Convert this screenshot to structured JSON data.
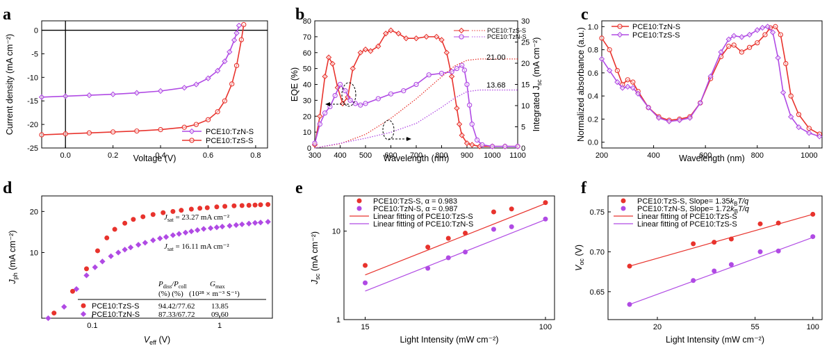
{
  "colors": {
    "red": "#e8332d",
    "purple": "#b04ae4"
  },
  "chart_data": [
    {
      "id": "a",
      "type": "line",
      "panel_label": "a",
      "xlabel": "Voltage (V)",
      "ylabel": "Current density (mA cm⁻²)",
      "xlim": [
        -0.1,
        0.85
      ],
      "ylim": [
        -25,
        2
      ],
      "xticks": [
        "0.0",
        "0.2",
        "0.4",
        "0.6",
        "0.8"
      ],
      "xtick_values": [
        0,
        0.2,
        0.4,
        0.6,
        0.8
      ],
      "yticks": [
        "0",
        "-5",
        "-10",
        "-15",
        "-20",
        "-25"
      ],
      "ytick_values": [
        0,
        -5,
        -10,
        -15,
        -20,
        -25
      ],
      "legend_position": "bottom-right",
      "series": [
        {
          "name": "PCE10:TzN-S",
          "color": "#b04ae4",
          "x": [
            -0.1,
            0.0,
            0.1,
            0.2,
            0.3,
            0.4,
            0.5,
            0.55,
            0.6,
            0.64,
            0.67,
            0.69,
            0.71,
            0.72,
            0.73
          ],
          "y": [
            -14.2,
            -14.0,
            -13.8,
            -13.6,
            -13.3,
            -12.9,
            -12.2,
            -11.5,
            -10.2,
            -8.6,
            -6.6,
            -4.6,
            -2.1,
            -0.6,
            1.0
          ]
        },
        {
          "name": "PCE10:TzS-S",
          "color": "#e8332d",
          "x": [
            -0.1,
            0.0,
            0.1,
            0.2,
            0.3,
            0.4,
            0.5,
            0.55,
            0.6,
            0.64,
            0.67,
            0.7,
            0.72,
            0.74,
            0.75
          ],
          "y": [
            -22.2,
            -22.0,
            -21.8,
            -21.6,
            -21.4,
            -21.1,
            -20.6,
            -20.0,
            -19.0,
            -17.3,
            -15.0,
            -11.4,
            -7.5,
            -2.0,
            1.2
          ]
        }
      ]
    },
    {
      "id": "b",
      "type": "line",
      "panel_label": "b",
      "xlabel": "Wavelength (nm)",
      "ylabel": "EQE (%)",
      "ylabel_right": "Integrated J",
      "ylabel_right_sub": "sc",
      "ylabel_right_unit": " (mA cm⁻²)",
      "xlim": [
        300,
        1100
      ],
      "ylim": [
        0,
        80
      ],
      "ylim_right": [
        0,
        30
      ],
      "xticks": [
        "300",
        "400",
        "500",
        "600",
        "700",
        "800",
        "900",
        "1000",
        "1100"
      ],
      "yticks": [
        "0",
        "10",
        "20",
        "30",
        "40",
        "50",
        "60",
        "70",
        "80"
      ],
      "yticks_right": [
        "0",
        "5",
        "10",
        "15",
        "20",
        "25",
        "30"
      ],
      "annotations": [
        "21.00",
        "13.68"
      ],
      "legend_position": "top-right",
      "series": [
        {
          "name": "PCE10:TzS-S",
          "color": "#e8332d",
          "x": [
            300,
            320,
            340,
            355,
            370,
            390,
            410,
            430,
            450,
            480,
            500,
            520,
            550,
            580,
            600,
            630,
            660,
            700,
            740,
            780,
            800,
            820,
            840,
            860,
            870,
            880,
            900,
            920,
            950,
            1000,
            1050,
            1100
          ],
          "y": [
            2,
            20,
            45,
            57,
            53,
            38,
            28,
            32,
            50,
            60,
            62,
            61,
            64,
            72,
            74,
            72,
            69,
            69,
            70,
            70,
            68,
            60,
            45,
            25,
            15,
            8,
            3,
            2,
            1,
            1,
            1,
            1
          ]
        },
        {
          "name": "PCE10:TzN-S",
          "color": "#b04ae4",
          "x": [
            300,
            320,
            340,
            360,
            380,
            400,
            420,
            440,
            460,
            480,
            500,
            550,
            600,
            650,
            700,
            750,
            800,
            840,
            860,
            880,
            890,
            900,
            910,
            920,
            940,
            960,
            1000,
            1050,
            1100
          ],
          "y": [
            3,
            15,
            22,
            26,
            33,
            40,
            36,
            30,
            28,
            27,
            28,
            31,
            34,
            36,
            40,
            46,
            47,
            48,
            50,
            52,
            49,
            40,
            27,
            15,
            5,
            2,
            1,
            1,
            1
          ]
        },
        {
          "name": "PCE10:TzS-S",
          "color": "#e8332d",
          "axis": "right",
          "style": "dotted",
          "x": [
            300,
            400,
            500,
            600,
            700,
            800,
            850,
            900,
            950,
            1000,
            1100
          ],
          "y": [
            0,
            1,
            3.2,
            7,
            11.6,
            16.8,
            19.3,
            20.7,
            21.0,
            21.0,
            21.0
          ]
        },
        {
          "name": "PCE10:TzN-S",
          "color": "#b04ae4",
          "axis": "right",
          "style": "dotted",
          "x": [
            300,
            400,
            500,
            600,
            700,
            800,
            850,
            900,
            950,
            1000,
            1100
          ],
          "y": [
            0,
            1.1,
            2.3,
            3.7,
            5.8,
            9.6,
            11.7,
            13.3,
            13.68,
            13.68,
            13.68
          ]
        }
      ]
    },
    {
      "id": "c",
      "type": "line",
      "panel_label": "c",
      "xlabel": "Wavelength (nm)",
      "ylabel": "Normalized absorbance (a.u.)",
      "xlim": [
        200,
        1050
      ],
      "ylim": [
        -0.05,
        1.05
      ],
      "xticks": [
        "200",
        "400",
        "600",
        "800",
        "1000"
      ],
      "yticks": [
        "0.0",
        "0.2",
        "0.4",
        "0.6",
        "0.8",
        "1.0"
      ],
      "legend_position": "top-left",
      "series": [
        {
          "name": "PCE10:TzN-S",
          "color": "#e8332d",
          "x": [
            200,
            230,
            260,
            280,
            300,
            320,
            340,
            380,
            420,
            460,
            500,
            540,
            580,
            620,
            660,
            690,
            710,
            740,
            770,
            800,
            830,
            850,
            870,
            890,
            910,
            930,
            960,
            1000,
            1040
          ],
          "y": [
            0.9,
            0.8,
            0.62,
            0.5,
            0.54,
            0.52,
            0.44,
            0.3,
            0.22,
            0.19,
            0.2,
            0.22,
            0.34,
            0.55,
            0.74,
            0.83,
            0.84,
            0.78,
            0.82,
            0.86,
            0.93,
            0.99,
            1.0,
            0.93,
            0.68,
            0.4,
            0.24,
            0.12,
            0.07
          ]
        },
        {
          "name": "PCE10:TzS-S",
          "color": "#b04ae4",
          "x": [
            200,
            230,
            260,
            280,
            300,
            320,
            340,
            380,
            420,
            460,
            500,
            540,
            580,
            620,
            660,
            690,
            710,
            740,
            770,
            800,
            820,
            840,
            860,
            880,
            900,
            930,
            960,
            1000,
            1040
          ],
          "y": [
            0.72,
            0.62,
            0.52,
            0.47,
            0.48,
            0.47,
            0.42,
            0.3,
            0.21,
            0.18,
            0.19,
            0.21,
            0.34,
            0.57,
            0.78,
            0.89,
            0.92,
            0.91,
            0.93,
            0.97,
            0.99,
            1.0,
            0.95,
            0.73,
            0.43,
            0.22,
            0.13,
            0.08,
            0.05
          ]
        }
      ]
    },
    {
      "id": "d",
      "type": "scatter",
      "panel_label": "d",
      "xscale": "log",
      "yscale": "log",
      "xlabel": "V",
      "xlabel_sub": "eff",
      "xlabel_unit": " (V)",
      "ylabel": "J",
      "ylabel_sub": "ph",
      "ylabel_unit": " (mA cm⁻²)",
      "xlim": [
        0.04,
        2.6
      ],
      "ylim": [
        3.3,
        26
      ],
      "xticks": [
        "0.1",
        "1"
      ],
      "yticks": [
        "10",
        "20"
      ],
      "annotations": [
        "J",
        "sat",
        " = 23.27 mA cm⁻²",
        "J",
        "sat",
        " = 16.11 mA cm⁻²"
      ],
      "table": {
        "header": [
          "P",
          "diss",
          "/P",
          "coll",
          "G",
          "max",
          "(%)   (%)",
          "(10²⁸ × m⁻³ S⁻¹)"
        ],
        "rows": [
          {
            "name": "PCE10:TzS-S",
            "value": "94.42/77.62",
            "g": "13.85"
          },
          {
            "name": "PCE10:TzN-S",
            "value": "87.33/67.72",
            "g": "09.60"
          }
        ]
      },
      "series": [
        {
          "name": "PCE10:TzS-S",
          "color": "#e8332d",
          "x": [
            0.05,
            0.07,
            0.09,
            0.11,
            0.13,
            0.15,
            0.18,
            0.21,
            0.25,
            0.3,
            0.36,
            0.43,
            0.5,
            0.6,
            0.7,
            0.8,
            0.95,
            1.1,
            1.3,
            1.5,
            1.7,
            1.9,
            2.1,
            2.4
          ],
          "y": [
            3.6,
            5.2,
            7.6,
            10.3,
            12.8,
            14.8,
            16.4,
            17.5,
            18.3,
            19.0,
            19.6,
            20.0,
            20.4,
            20.8,
            21.1,
            21.3,
            21.6,
            21.8,
            22.0,
            22.1,
            22.2,
            22.3,
            22.4,
            22.5
          ]
        },
        {
          "name": "PCE10:TzN-S",
          "color": "#b04ae4",
          "x": [
            0.045,
            0.06,
            0.075,
            0.09,
            0.105,
            0.12,
            0.14,
            0.16,
            0.18,
            0.2,
            0.23,
            0.26,
            0.3,
            0.34,
            0.38,
            0.43,
            0.48,
            0.54,
            0.6,
            0.67,
            0.75,
            0.85,
            0.95,
            1.05,
            1.2,
            1.35,
            1.5,
            1.7,
            1.9,
            2.1,
            2.4
          ],
          "y": [
            3.3,
            4.0,
            5.4,
            6.8,
            7.8,
            8.6,
            9.4,
            10.0,
            10.5,
            10.9,
            11.4,
            11.8,
            12.3,
            12.7,
            13.0,
            13.4,
            13.7,
            14.0,
            14.3,
            14.6,
            14.9,
            15.1,
            15.3,
            15.5,
            15.7,
            15.9,
            16.1,
            16.3,
            16.5,
            16.6,
            16.8
          ]
        }
      ]
    },
    {
      "id": "e",
      "type": "scatter",
      "panel_label": "e",
      "xscale": "log",
      "yscale": "log",
      "xlabel": "Light Intensity (mW cm⁻²)",
      "ylabel": "J",
      "ylabel_sub": "sc",
      "ylabel_unit": " (mA cm⁻²)",
      "xlim": [
        12,
        110
      ],
      "ylim": [
        1,
        25
      ],
      "xticks": [
        "15",
        "100"
      ],
      "yticks": [
        "1",
        "10"
      ],
      "legend_position": "top-left",
      "legend": [
        {
          "text": "PCE10:TzS-S, α = 0.983",
          "color": "#e8332d",
          "kind": "marker"
        },
        {
          "text": "PCE10:TzN-S, α = 0.987",
          "color": "#b04ae4",
          "kind": "marker"
        },
        {
          "text": "Linear fitting of PCE10:TzS-S",
          "color": "#e8332d",
          "kind": "line"
        },
        {
          "text": "Linear fitting of PCE10:TzN-S",
          "color": "#b04ae4",
          "kind": "line"
        }
      ],
      "series": [
        {
          "name": "PCE10:TzS-S",
          "color": "#e8332d",
          "x": [
            15,
            29,
            36,
            43,
            58,
            70,
            100
          ],
          "y": [
            4.1,
            6.6,
            8.3,
            9.5,
            16.5,
            17.8,
            21.0
          ]
        },
        {
          "name": "PCE10:TzN-S",
          "color": "#b04ae4",
          "x": [
            15,
            29,
            36,
            43,
            58,
            70,
            100
          ],
          "y": [
            2.6,
            3.8,
            5.0,
            5.8,
            10.5,
            11.2,
            13.7
          ]
        }
      ],
      "fits": [
        {
          "color": "#e8332d",
          "x": [
            15,
            100
          ],
          "y": [
            3.2,
            20.5
          ]
        },
        {
          "color": "#b04ae4",
          "x": [
            15,
            100
          ],
          "y": [
            2.1,
            13.5
          ]
        }
      ]
    },
    {
      "id": "f",
      "type": "scatter",
      "panel_label": "f",
      "xscale": "log",
      "xlabel": "Light Intensity (mW cm⁻²)",
      "ylabel": "V",
      "ylabel_sub": "oc",
      "ylabel_unit": " (V)",
      "xlim": [
        12,
        110
      ],
      "ylim": [
        0.615,
        0.77
      ],
      "xticks": [
        "20",
        "55",
        "100"
      ],
      "yticks": [
        "0.65",
        "0.70",
        "0.75"
      ],
      "legend_position": "top-left",
      "legend": [
        {
          "text": "PCE10:TzS-S, Slope= 1.35k",
          "tail": "T/q",
          "color": "#e8332d",
          "kind": "marker"
        },
        {
          "text": "PCE10:TzN-S, Slope= 1.72k",
          "tail": "T/q",
          "color": "#b04ae4",
          "kind": "marker"
        },
        {
          "text": "Linear fitting of PCE10:TzS-S",
          "color": "#e8332d",
          "kind": "line"
        },
        {
          "text": "Linear fitting of PCE10:TzS-S",
          "color": "#b04ae4",
          "kind": "line"
        }
      ],
      "legend_sub": "B",
      "series": [
        {
          "name": "PCE10:TzS-S",
          "color": "#e8332d",
          "x": [
            15,
            29,
            36,
            43,
            58,
            70,
            100
          ],
          "y": [
            0.682,
            0.71,
            0.712,
            0.716,
            0.735,
            0.736,
            0.747
          ]
        },
        {
          "name": "PCE10:TzN-S",
          "color": "#b04ae4",
          "x": [
            15,
            29,
            36,
            43,
            58,
            70,
            100
          ],
          "y": [
            0.634,
            0.664,
            0.676,
            0.684,
            0.7,
            0.701,
            0.719
          ]
        }
      ],
      "fits": [
        {
          "color": "#e8332d",
          "x": [
            15,
            100
          ],
          "y": [
            0.682,
            0.747
          ]
        },
        {
          "color": "#b04ae4",
          "x": [
            15,
            100
          ],
          "y": [
            0.634,
            0.718
          ]
        }
      ]
    }
  ]
}
